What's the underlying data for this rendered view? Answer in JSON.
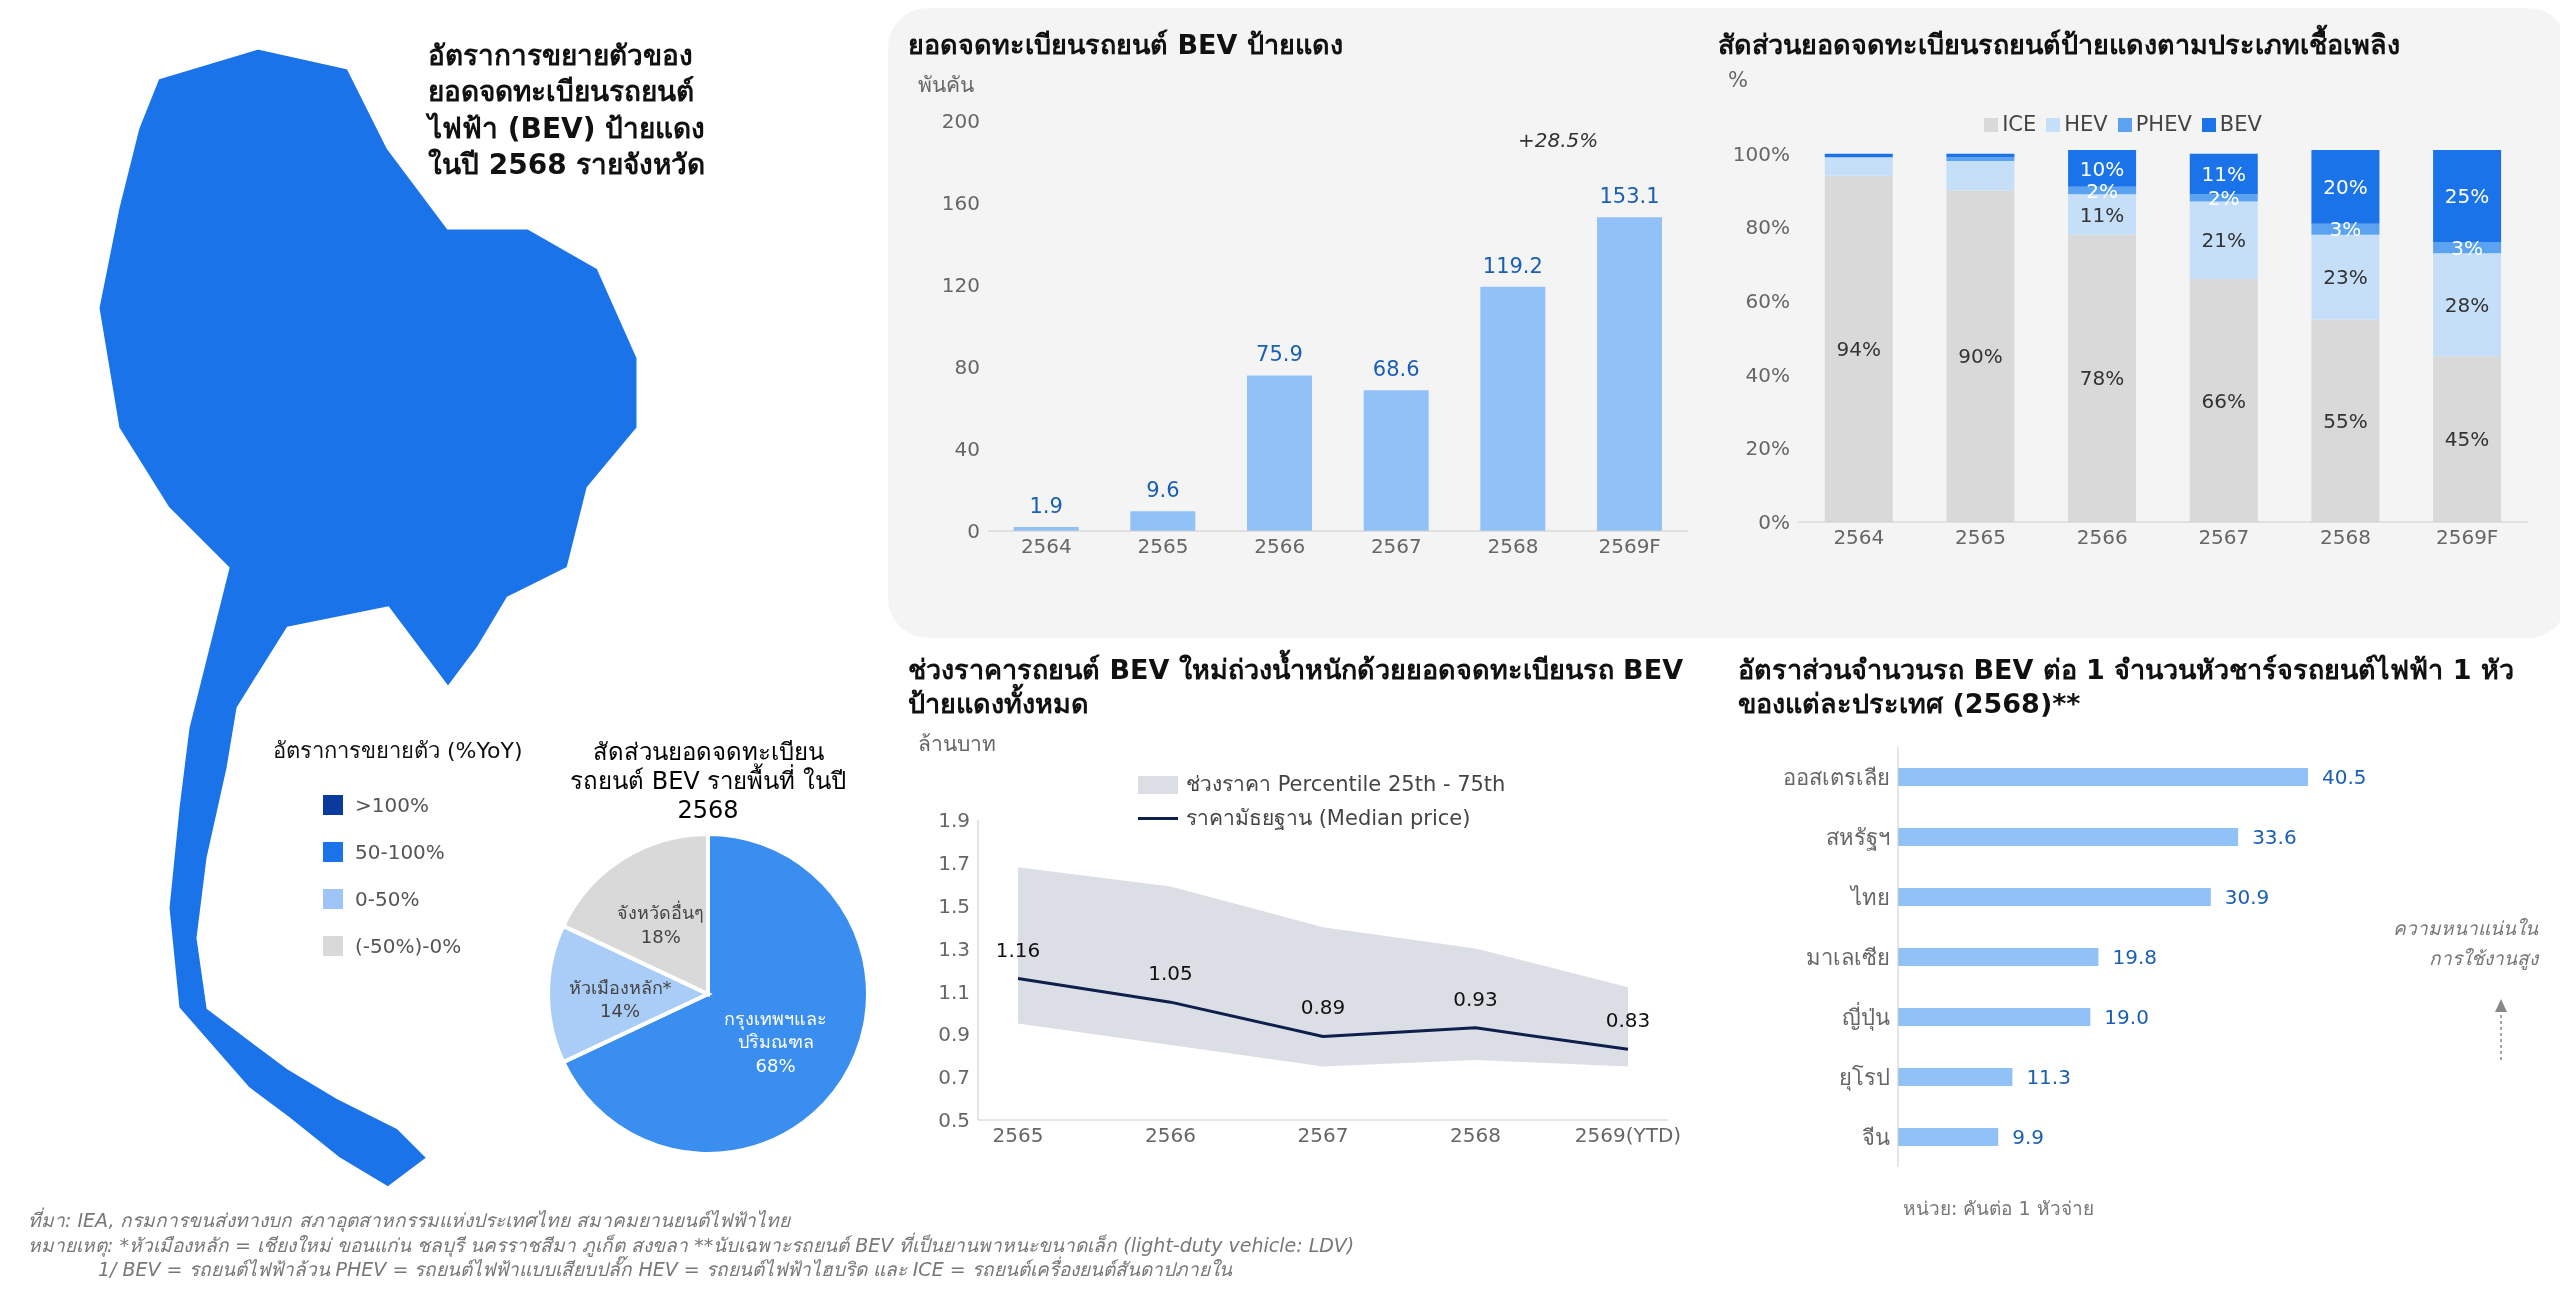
{
  "chart_data": [
    {
      "type": "other",
      "title": "อัตราการขยายตัวของยอดจดทะเบียนรถยนต์ไฟฟ้า (BEV) ป้ายแดงในปี 2568 รายจังหวัด",
      "legend_title": "อัตราการขยายตัว (%YoY)",
      "categories": [
        ">100%",
        "50-100%",
        "0-50%",
        "(-50%)-0%"
      ],
      "colors": [
        "#0a3a9c",
        "#1a73e8",
        "#9ec5f5",
        "#d9d9d9"
      ],
      "annotations": [
        "ที่มา: IEA, กรมการขนส่งทางบก สภาอุตสาหกรรมแห่งประเทศไทย สมาคมยานยนต์ไฟฟ้าไทย",
        "หมายเหตุ: *หัวเมืองหลัก = เชียงใหม่ ขอนแก่น ชลบุรี นครราชสีมา ภูเก็ต สงขลา **นับเฉพาะรถยนต์ BEV ที่เป็นยานพาหนะขนาดเล็ก (light-duty vehicle: LDV)",
        "1/ BEV = รถยนต์ไฟฟ้าล้วน PHEV = รถยนต์ไฟฟ้าแบบเสียบปลั๊ก HEV = รถยนต์ไฟฟ้าไฮบริด และ ICE = รถยนต์เครื่องยนต์สันดาปภายใน"
      ]
    },
    {
      "type": "pie",
      "title": "สัดส่วนยอดจดทะเบียนรถยนต์ BEV รายพื้นที่ ในปี 2568",
      "categories": [
        "กรุงเทพฯและปริมณฑล",
        "หัวเมืองหลัก*",
        "จังหวัดอื่นๆ"
      ],
      "values": [
        68,
        14,
        18
      ],
      "colors": [
        "#3a8ef0",
        "#a9cdf7",
        "#d9d9d9"
      ],
      "value_labels": [
        "68%",
        "14%",
        "18%"
      ]
    },
    {
      "type": "bar",
      "title": "ยอดจดทะเบียนรถยนต์ BEV ป้ายแดง",
      "ylabel": "พันคัน",
      "categories": [
        "2564",
        "2565",
        "2566",
        "2567",
        "2568",
        "2569F"
      ],
      "values": [
        1.9,
        9.6,
        75.9,
        68.6,
        119.2,
        153.1
      ],
      "color": "#90c2f7",
      "ylim": [
        0,
        200
      ],
      "yticks": [
        0,
        40,
        80,
        120,
        160,
        200
      ],
      "data_labels": true,
      "annotations": [
        "+28.5%"
      ]
    },
    {
      "type": "bar",
      "stacked": true,
      "title": "สัดส่วนยอดจดทะเบียนรถยนต์ป้ายแดงตามประเภทเชื้อเพลิง",
      "ylabel": "%",
      "categories": [
        "2564",
        "2565",
        "2566",
        "2567",
        "2568",
        "2569F"
      ],
      "ylim": [
        0,
        101
      ],
      "yticks": [
        {
          "value": 0,
          "label": "0%"
        },
        {
          "value": 20,
          "label": "20%"
        },
        {
          "value": 40,
          "label": "40%"
        },
        {
          "value": 60,
          "label": "60%"
        },
        {
          "value": 80,
          "label": "80%"
        },
        {
          "value": 100,
          "label": "100%"
        }
      ],
      "legend": "top",
      "series": [
        {
          "name": "ICE",
          "color": "#d9d9d9",
          "values": [
            94,
            90,
            78,
            66,
            55,
            45
          ],
          "value_labels": [
            "94%",
            "90%",
            "78%",
            "66%",
            "55%",
            "45%"
          ]
        },
        {
          "name": "HEV",
          "color": "#c5dff8",
          "values": [
            5,
            8,
            11,
            21,
            23,
            28
          ],
          "value_labels": [
            null,
            null,
            "11%",
            "21%",
            "23%",
            "28%"
          ]
        },
        {
          "name": "PHEV",
          "color": "#5ba3f0",
          "values": [
            0,
            1,
            2,
            2,
            3,
            3
          ],
          "value_labels": [
            null,
            null,
            "2%",
            "2%",
            "3%",
            "3%"
          ]
        },
        {
          "name": "BEV",
          "color": "#1a73e8",
          "values": [
            1,
            1,
            10,
            11,
            20,
            25
          ],
          "value_labels": [
            null,
            null,
            "10%",
            "11%",
            "20%",
            "25%"
          ]
        }
      ]
    },
    {
      "type": "line",
      "title": "ช่วงราคารถยนต์ BEV ใหม่ถ่วงน้ำหนักด้วยยอดจดทะเบียนรถ BEV ป้ายแดงทั้งหมด",
      "ylabel": "ล้านบาท",
      "categories": [
        "2565",
        "2566",
        "2567",
        "2568",
        "2569(YTD)"
      ],
      "ylim": [
        0.5,
        1.9
      ],
      "yticks": [
        0.5,
        0.7,
        0.9,
        1.1,
        1.3,
        1.5,
        1.7,
        1.9
      ],
      "legend": "top",
      "annotations": [
        "ช่วงราคา Percentile 25th - 75th"
      ],
      "series": [
        {
          "name": "ราคามัธยฐาน (Median price)",
          "type": "line",
          "color": "#0d1f4a",
          "values": [
            1.16,
            1.05,
            0.89,
            0.93,
            0.83
          ],
          "lower": [
            0.95,
            0.85,
            0.75,
            0.78,
            0.75
          ],
          "upper": [
            1.68,
            1.59,
            1.4,
            1.3,
            1.12
          ],
          "value_labels": [
            "1.16",
            "1.05",
            "0.89",
            "0.93",
            "0.83"
          ]
        }
      ]
    },
    {
      "type": "bar",
      "orientation": "horizontal",
      "title": "อัตราส่วนจำนวนรถ BEV ต่อ 1 จำนวนหัวชาร์จรถยนต์ไฟฟ้า 1 หัว ของแต่ละประเทศ (2568)**",
      "categories": [
        "ออสเตรเลีย",
        "สหรัฐฯ",
        "ไทย",
        "มาเลเซีย",
        "ญี่ปุ่น",
        "ยุโรป",
        "จีน"
      ],
      "values": [
        40.5,
        33.6,
        30.9,
        19.8,
        19.0,
        11.3,
        9.9
      ],
      "color": "#90c2f7",
      "value_labels": [
        "40.5",
        "33.6",
        "30.9",
        "19.8",
        "19.0",
        "11.3",
        "9.9"
      ],
      "annotations": [
        "หน่วย: คันต่อ 1 หัวจ่าย",
        "ความหนาแน่นในการใช้งานสูง"
      ]
    }
  ]
}
